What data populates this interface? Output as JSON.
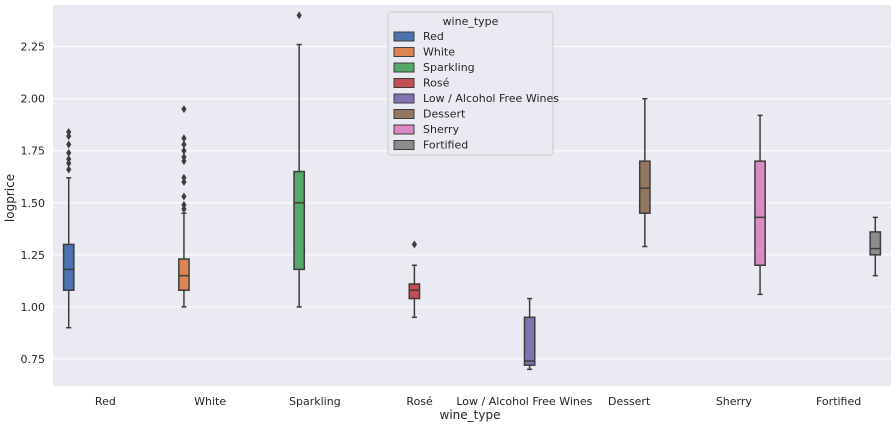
{
  "chart_data": {
    "type": "boxplot",
    "xlabel": "wine_type",
    "ylabel": "logprice",
    "ylim": [
      0.62,
      2.45
    ],
    "yticks": [
      0.75,
      1.0,
      1.25,
      1.5,
      1.75,
      2.0,
      2.25
    ],
    "ytick_labels": [
      "0.75",
      "1.00",
      "1.25",
      "1.50",
      "1.75",
      "2.00",
      "2.25"
    ],
    "categories": [
      "Red",
      "White",
      "Sparkling",
      "Rosé",
      "Low / Alcohol Free Wines",
      "Dessert",
      "Sherry",
      "Fortified"
    ],
    "grid": true,
    "legend": {
      "title": "wine_type",
      "position": "top-center",
      "entries": [
        "Red",
        "White",
        "Sparkling",
        "Rosé",
        "Low / Alcohol Free Wines",
        "Dessert",
        "Sherry",
        "Fortified"
      ]
    },
    "series": [
      {
        "name": "Red",
        "color": "#4c72b0",
        "whislo": 0.9,
        "q1": 1.08,
        "med": 1.18,
        "q3": 1.3,
        "whishi": 1.62,
        "fliers": [
          1.66,
          1.69,
          1.71,
          1.74,
          1.78,
          1.82,
          1.84
        ]
      },
      {
        "name": "White",
        "color": "#dd8452",
        "whislo": 1.0,
        "q1": 1.08,
        "med": 1.15,
        "q3": 1.23,
        "whishi": 1.45,
        "fliers": [
          1.47,
          1.49,
          1.53,
          1.6,
          1.62,
          1.7,
          1.72,
          1.75,
          1.78,
          1.81,
          1.95
        ]
      },
      {
        "name": "Sparkling",
        "color": "#55a868",
        "whislo": 1.0,
        "q1": 1.18,
        "med": 1.5,
        "q3": 1.65,
        "whishi": 2.26,
        "fliers": [
          2.4
        ]
      },
      {
        "name": "Rosé",
        "color": "#c44e52",
        "whislo": 0.95,
        "q1": 1.04,
        "med": 1.08,
        "q3": 1.11,
        "whishi": 1.2,
        "fliers": [
          1.3
        ]
      },
      {
        "name": "Low / Alcohol Free Wines",
        "color": "#8172b3",
        "whislo": 0.7,
        "q1": 0.72,
        "med": 0.74,
        "q3": 0.95,
        "whishi": 1.04,
        "fliers": []
      },
      {
        "name": "Dessert",
        "color": "#937860",
        "whislo": 1.29,
        "q1": 1.45,
        "med": 1.57,
        "q3": 1.7,
        "whishi": 2.0,
        "fliers": []
      },
      {
        "name": "Sherry",
        "color": "#da8bc3",
        "whislo": 1.06,
        "q1": 1.2,
        "med": 1.43,
        "q3": 1.7,
        "whishi": 1.92,
        "fliers": []
      },
      {
        "name": "Fortified",
        "color": "#8c8c8c",
        "whislo": 1.15,
        "q1": 1.25,
        "med": 1.28,
        "q3": 1.36,
        "whishi": 1.43,
        "fliers": []
      }
    ]
  }
}
